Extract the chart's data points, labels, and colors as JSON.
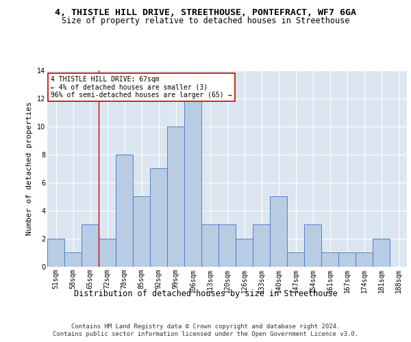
{
  "title1": "4, THISTLE HILL DRIVE, STREETHOUSE, PONTEFRACT, WF7 6GA",
  "title2": "Size of property relative to detached houses in Streethouse",
  "xlabel": "Distribution of detached houses by size in Streethouse",
  "ylabel": "Number of detached properties",
  "footer1": "Contains HM Land Registry data © Crown copyright and database right 2024.",
  "footer2": "Contains public sector information licensed under the Open Government Licence v3.0.",
  "categories": [
    "51sqm",
    "58sqm",
    "65sqm",
    "72sqm",
    "78sqm",
    "85sqm",
    "92sqm",
    "99sqm",
    "106sqm",
    "113sqm",
    "120sqm",
    "126sqm",
    "133sqm",
    "140sqm",
    "147sqm",
    "154sqm",
    "161sqm",
    "167sqm",
    "174sqm",
    "181sqm",
    "188sqm"
  ],
  "bar_values": [
    2,
    1,
    3,
    2,
    8,
    5,
    7,
    10,
    12,
    3,
    3,
    2,
    3,
    5,
    1,
    3,
    1,
    1,
    1,
    2,
    0
  ],
  "bar_color": "#b8cce4",
  "bar_edgecolor": "#4472c4",
  "bg_color": "#dce6f1",
  "grid_color": "#ffffff",
  "vline_x_index": 2,
  "vline_color": "#cc0000",
  "annotation_text": "4 THISTLE HILL DRIVE: 67sqm\n← 4% of detached houses are smaller (3)\n96% of semi-detached houses are larger (65) →",
  "annotation_box_color": "#cc0000",
  "ylim": [
    0,
    14
  ],
  "yticks": [
    0,
    2,
    4,
    6,
    8,
    10,
    12,
    14
  ],
  "title1_fontsize": 9.5,
  "title2_fontsize": 8.5,
  "ylabel_fontsize": 8,
  "xlabel_fontsize": 8.5,
  "tick_fontsize": 7,
  "annotation_fontsize": 7,
  "footer_fontsize": 6.5
}
